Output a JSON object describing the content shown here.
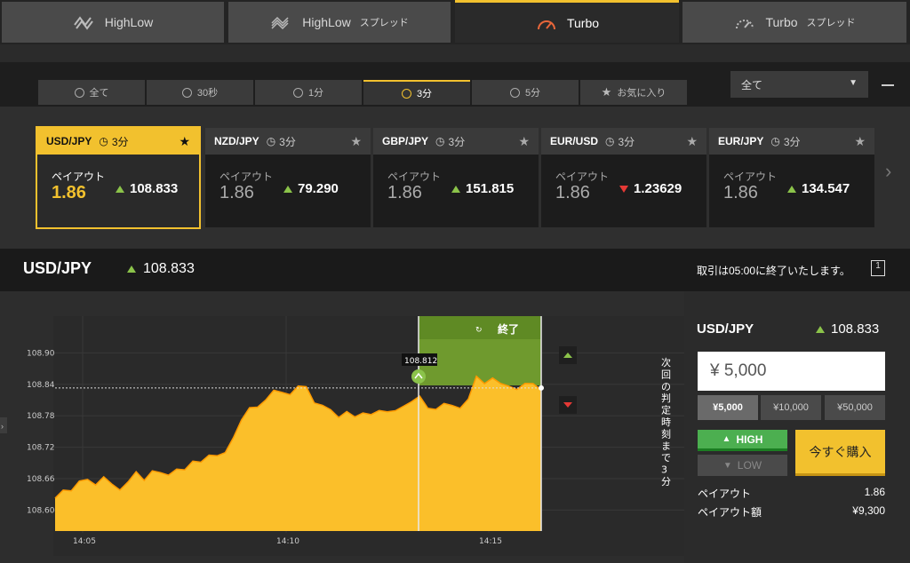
{
  "product_tabs": [
    {
      "label": "HighLow",
      "sub": "",
      "icon": "highlow-icon"
    },
    {
      "label": "HighLow",
      "sub": "スプレッド",
      "icon": "highlow-spread-icon"
    },
    {
      "label": "Turbo",
      "sub": "",
      "icon": "turbo-gauge-icon"
    },
    {
      "label": "Turbo",
      "sub": "スプレッド",
      "icon": "turbo-spread-gauge-icon"
    }
  ],
  "duration_tabs": [
    {
      "label": "全て",
      "icon": "clock-icon"
    },
    {
      "label": "30秒",
      "icon": "clock-icon"
    },
    {
      "label": "1分",
      "icon": "clock-icon"
    },
    {
      "label": "3分",
      "icon": "clock-icon"
    },
    {
      "label": "5分",
      "icon": "clock-icon"
    },
    {
      "label": "お気に入り",
      "icon": "star-icon"
    }
  ],
  "filter": {
    "selected": "全て"
  },
  "cards": [
    {
      "pair": "USD/JPY",
      "duration": "3分",
      "payout_label": "ペイアウト",
      "payout": "1.86",
      "rate": "108.833",
      "direction": "up"
    },
    {
      "pair": "NZD/JPY",
      "duration": "3分",
      "payout_label": "ペイアウト",
      "payout": "1.86",
      "rate": "79.290",
      "direction": "up"
    },
    {
      "pair": "GBP/JPY",
      "duration": "3分",
      "payout_label": "ペイアウト",
      "payout": "1.86",
      "rate": "151.815",
      "direction": "up"
    },
    {
      "pair": "EUR/USD",
      "duration": "3分",
      "payout_label": "ペイアウト",
      "payout": "1.86",
      "rate": "1.23629",
      "direction": "down"
    },
    {
      "pair": "EUR/JPY",
      "duration": "3分",
      "payout_label": "ペイアウト",
      "payout": "1.86",
      "rate": "134.547",
      "direction": "up"
    }
  ],
  "symbol": {
    "name": "USD/JPY",
    "rate": "108.833",
    "message": "取引は05:00に終了いたします。",
    "icon_digit": "1"
  },
  "chart_data": {
    "type": "area",
    "y_ticks": [
      "108.90",
      "108.84",
      "108.78",
      "108.72",
      "108.66",
      "108.60"
    ],
    "x_ticks": [
      "14:05",
      "14:10",
      "14:15"
    ],
    "entry_label": "108.812",
    "end_label": "終了",
    "side_text": "次回の判定時刻まで3分",
    "current_level": 108.833,
    "ylim": [
      108.56,
      108.96
    ],
    "series": [
      108.628,
      108.64,
      108.635,
      108.65,
      108.662,
      108.648,
      108.66,
      108.655,
      108.64,
      108.652,
      108.668,
      108.66,
      108.675,
      108.668,
      108.672,
      108.68,
      108.675,
      108.688,
      108.695,
      108.705,
      108.7,
      108.715,
      108.74,
      108.77,
      108.79,
      108.8,
      108.81,
      108.825,
      108.83,
      108.822,
      108.835,
      108.83,
      108.808,
      108.8,
      108.788,
      108.782,
      108.79,
      108.776,
      108.78,
      108.786,
      108.79,
      108.784,
      108.795,
      108.8,
      108.805,
      108.812,
      108.798,
      108.792,
      108.8,
      108.805,
      108.796,
      108.81,
      108.85,
      108.845,
      108.852,
      108.838,
      108.842,
      108.832,
      108.84,
      108.836,
      108.833
    ]
  },
  "panel": {
    "symbol": "USD/JPY",
    "rate": "108.833",
    "amount": "¥ 5,000",
    "presets": [
      "¥5,000",
      "¥10,000",
      "¥50,000"
    ],
    "high_label": "HIGH",
    "low_label": "LOW",
    "buy_label": "今すぐ購入",
    "payout_label": "ペイアウト",
    "payout_value": "1.86",
    "payout_amount_label": "ペイアウト額",
    "payout_amount_value": "¥9,300"
  },
  "colors": {
    "accent": "#f2c12e",
    "up": "#8bc34a",
    "down": "#e53935",
    "area": "#fbbf2a",
    "zone": "#6f9a2e"
  }
}
